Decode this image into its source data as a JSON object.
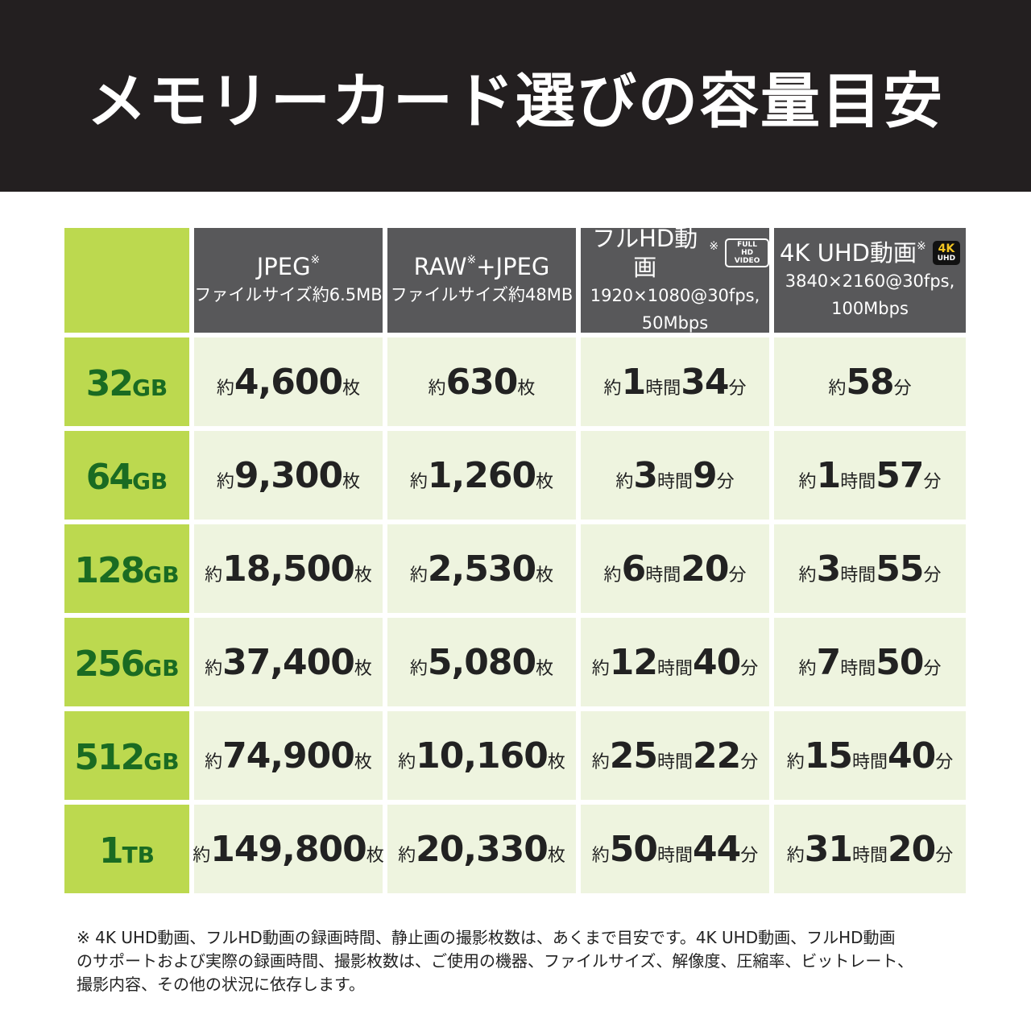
{
  "header": {
    "title": "メモリーカード選びの容量目安"
  },
  "table": {
    "columns": [
      {
        "title": [
          "JPEG",
          "※"
        ],
        "lines": [
          "ファイルサイズ約6.5MB"
        ]
      },
      {
        "title": [
          "RAW",
          "※",
          "+JPEG"
        ],
        "lines": [
          "ファイルサイズ約48MB"
        ]
      },
      {
        "title": [
          "フルHD動画",
          "※"
        ],
        "badge": [
          "FULL HD",
          "VIDEO"
        ],
        "lines": [
          "1920×1080@30fps,",
          "50Mbps"
        ]
      },
      {
        "title": [
          "4K UHD動画",
          "※"
        ],
        "badge": [
          "4K",
          "UHD"
        ],
        "lines": [
          "3840×2160@30fps,",
          "100Mbps"
        ]
      }
    ],
    "rows": [
      {
        "capacity": [
          "32",
          "GB"
        ],
        "cells": [
          [
            "約",
            "4,600",
            "枚"
          ],
          [
            "約",
            "630",
            "枚"
          ],
          [
            "約",
            "1",
            "時間",
            "34",
            "分"
          ],
          [
            "約",
            "58",
            "分"
          ]
        ]
      },
      {
        "capacity": [
          "64",
          "GB"
        ],
        "cells": [
          [
            "約",
            "9,300",
            "枚"
          ],
          [
            "約",
            "1,260",
            "枚"
          ],
          [
            "約",
            "3",
            "時間",
            "9",
            "分"
          ],
          [
            "約",
            "1",
            "時間",
            "57",
            "分"
          ]
        ]
      },
      {
        "capacity": [
          "128",
          "GB"
        ],
        "cells": [
          [
            "約",
            "18,500",
            "枚"
          ],
          [
            "約",
            "2,530",
            "枚"
          ],
          [
            "約",
            "6",
            "時間",
            "20",
            "分"
          ],
          [
            "約",
            "3",
            "時間",
            "55",
            "分"
          ]
        ]
      },
      {
        "capacity": [
          "256",
          "GB"
        ],
        "cells": [
          [
            "約",
            "37,400",
            "枚"
          ],
          [
            "約",
            "5,080",
            "枚"
          ],
          [
            "約",
            "12",
            "時間",
            "40",
            "分"
          ],
          [
            "約",
            "7",
            "時間",
            "50",
            "分"
          ]
        ]
      },
      {
        "capacity": [
          "512",
          "GB"
        ],
        "cells": [
          [
            "約",
            "74,900",
            "枚"
          ],
          [
            "約",
            "10,160",
            "枚"
          ],
          [
            "約",
            "25",
            "時間",
            "22",
            "分"
          ],
          [
            "約",
            "15",
            "時間",
            "40",
            "分"
          ]
        ]
      },
      {
        "capacity": [
          "1",
          "TB"
        ],
        "cells": [
          [
            "約",
            "149,800",
            "枚"
          ],
          [
            "約",
            "20,330",
            "枚"
          ],
          [
            "約",
            "50",
            "時間",
            "44",
            "分"
          ],
          [
            "約",
            "31",
            "時間",
            "20",
            "分"
          ]
        ]
      }
    ]
  },
  "footnote": [
    "※ 4K UHD動画、フルHD動画の録画時間、静止画の撮影枚数は、あくまで目安です。4K UHD動画、フルHD動画",
    "のサポートおよび実際の録画時間、撮影枚数は、ご使用の機器、ファイルサイズ、解像度、圧縮率、ビットレート、",
    "撮影内容、その他の状況に依存します。"
  ]
}
